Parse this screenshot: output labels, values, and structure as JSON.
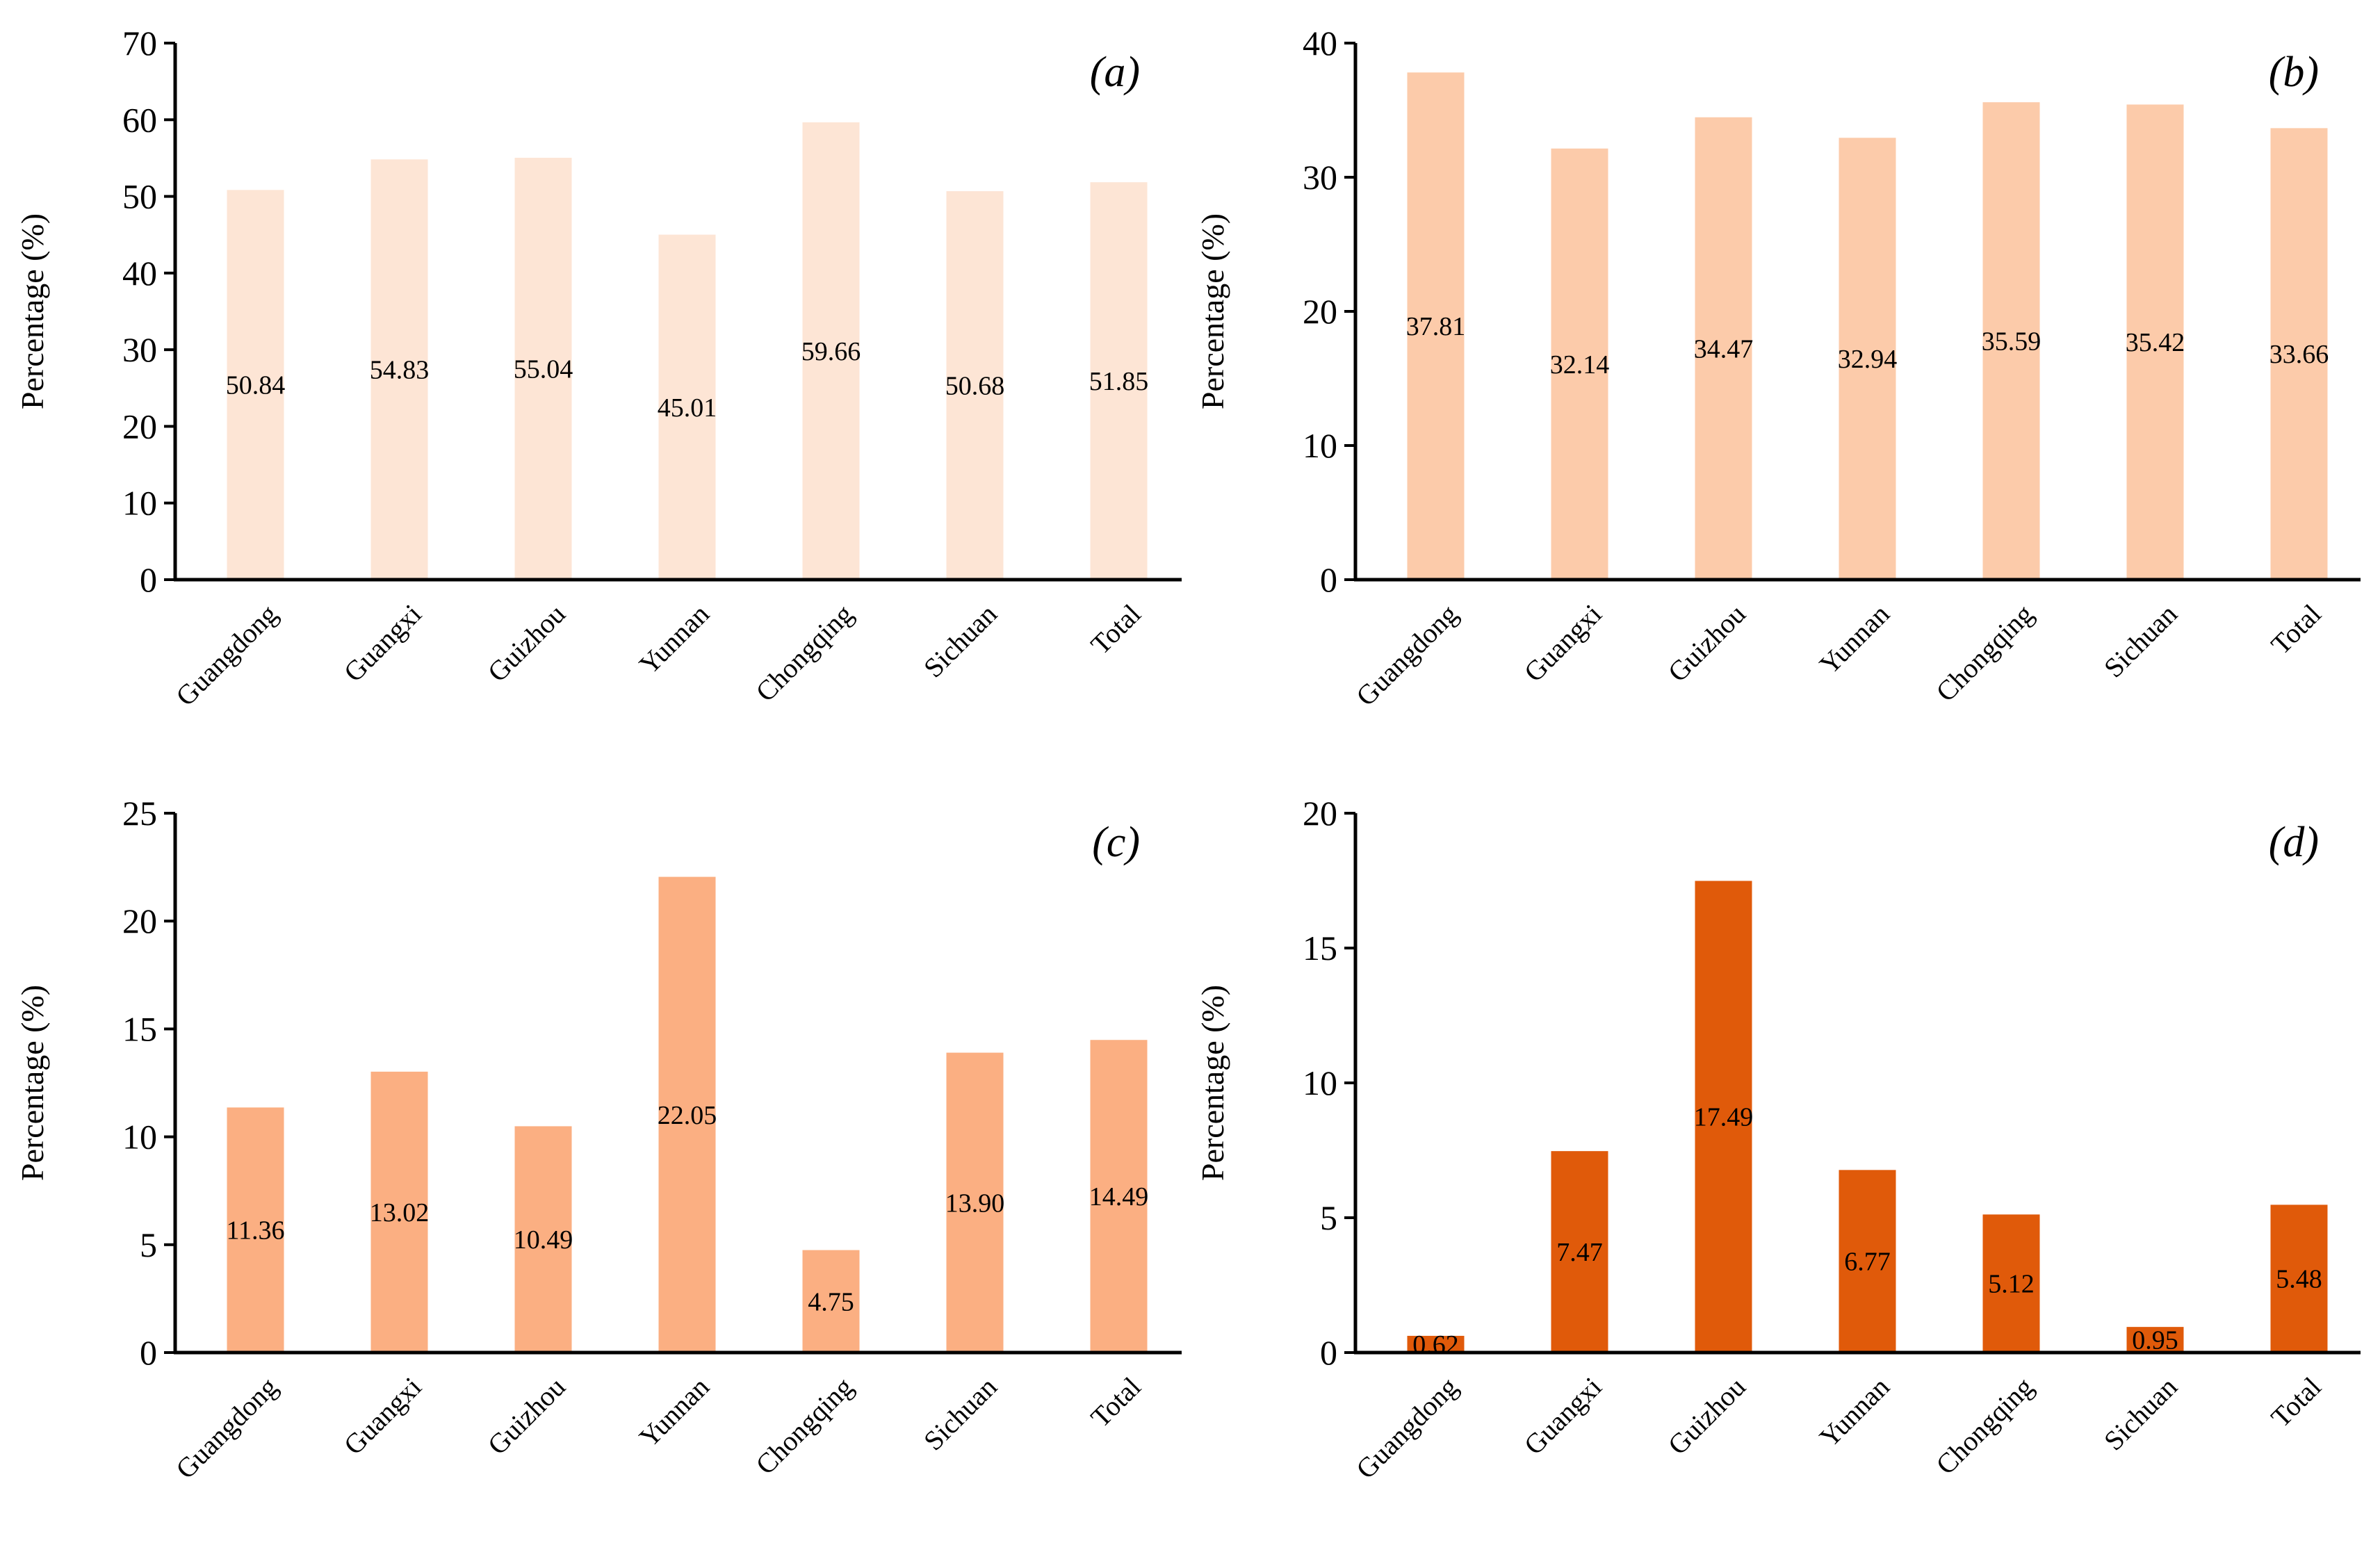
{
  "figure": {
    "ylabel": "Percentage (%)",
    "categories": [
      "Guangdong",
      "Guangxi",
      "Guizhou",
      "Yunnan",
      "Chongqing",
      "Sichuan",
      "Total"
    ]
  },
  "chart_data": [
    {
      "type": "bar",
      "panel": "(a)",
      "panel_letter": "a",
      "color": "#FDE5D5",
      "categories": [
        "Guangdong",
        "Guangxi",
        "Guizhou",
        "Yunnan",
        "Chongqing",
        "Sichuan",
        "Total"
      ],
      "values": [
        50.84,
        54.83,
        55.04,
        45.01,
        59.66,
        50.68,
        51.85
      ],
      "value_labels": [
        "50.84",
        "54.83",
        "55.04",
        "45.01",
        "59.66",
        "50.68",
        "51.85"
      ],
      "ylim": [
        0,
        70
      ],
      "yticks": [
        0,
        10,
        20,
        30,
        40,
        50,
        60,
        70
      ],
      "xlabel": "",
      "ylabel": "Percentage (%)"
    },
    {
      "type": "bar",
      "panel": "(b)",
      "panel_letter": "b",
      "color": "#FCCBAA",
      "categories": [
        "Guangdong",
        "Guangxi",
        "Guizhou",
        "Yunnan",
        "Chongqing",
        "Sichuan",
        "Total"
      ],
      "values": [
        37.81,
        32.14,
        34.47,
        32.94,
        35.59,
        35.42,
        33.66
      ],
      "value_labels": [
        "37.81",
        "32.14",
        "34.47",
        "32.94",
        "35.59",
        "35.42",
        "33.66"
      ],
      "ylim": [
        0,
        40
      ],
      "yticks": [
        0,
        10,
        20,
        30,
        40
      ],
      "xlabel": "",
      "ylabel": "Percentage (%)"
    },
    {
      "type": "bar",
      "panel": "(c)",
      "panel_letter": "c",
      "color": "#FBAF82",
      "categories": [
        "Guangdong",
        "Guangxi",
        "Guizhou",
        "Yunnan",
        "Chongqing",
        "Sichuan",
        "Total"
      ],
      "values": [
        11.36,
        13.02,
        10.49,
        22.05,
        4.75,
        13.9,
        14.49
      ],
      "value_labels": [
        "11.36",
        "13.02",
        "10.49",
        "22.05",
        "4.75",
        "13.90",
        "14.49"
      ],
      "ylim": [
        0,
        25
      ],
      "yticks": [
        0,
        5,
        10,
        15,
        20,
        25
      ],
      "xlabel": "",
      "ylabel": "Percentage (%)"
    },
    {
      "type": "bar",
      "panel": "(d)",
      "panel_letter": "d",
      "color": "#E05A0A",
      "categories": [
        "Guangdong",
        "Guangxi",
        "Guizhou",
        "Yunnan",
        "Chongqing",
        "Sichuan",
        "Total"
      ],
      "values": [
        0.62,
        7.47,
        17.49,
        6.77,
        5.12,
        0.95,
        5.48
      ],
      "value_labels": [
        "0.62",
        "7.47",
        "17.49",
        "6.77",
        "5.12",
        "0.95",
        "5.48"
      ],
      "ylim": [
        0,
        20
      ],
      "yticks": [
        0,
        5,
        10,
        15,
        20
      ],
      "xlabel": "",
      "ylabel": "Percentage (%)"
    }
  ]
}
